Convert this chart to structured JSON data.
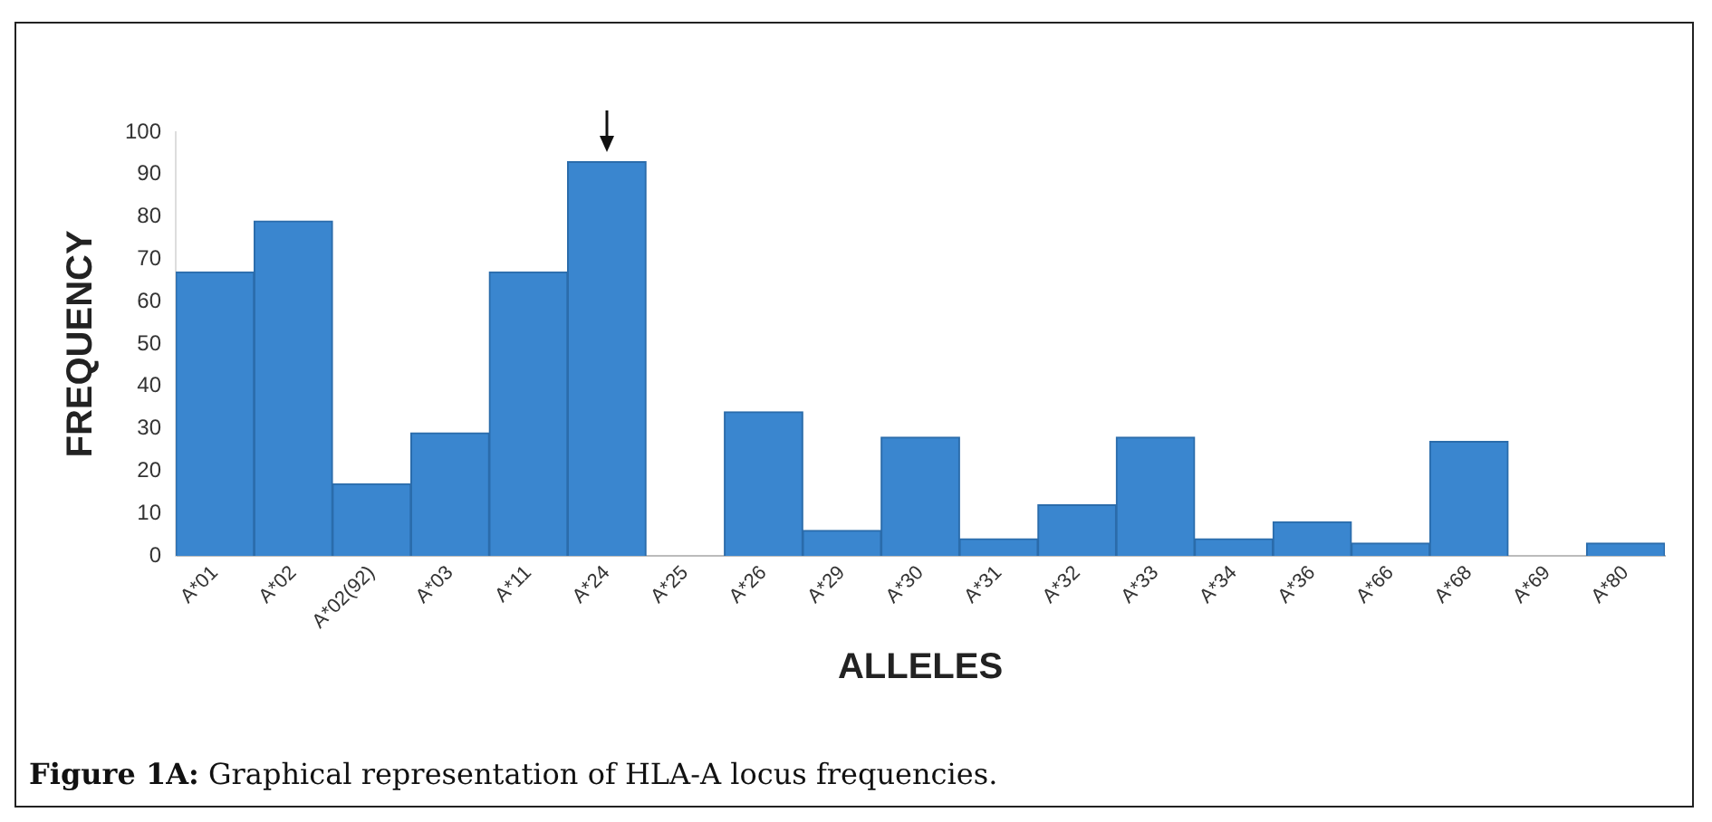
{
  "chart_data": {
    "type": "bar",
    "xlabel": "ALLELES",
    "ylabel": "FREQUENCY",
    "categories": [
      "A*01",
      "A*02",
      "A*02(92)",
      "A*03",
      "A*11",
      "A*24",
      "A*25",
      "A*26",
      "A*29",
      "A*30",
      "A*31",
      "A*32",
      "A*33",
      "A*34",
      "A*36",
      "A*66",
      "A*68",
      "A*69",
      "A*80"
    ],
    "values": [
      67,
      79,
      17,
      29,
      67,
      93,
      0,
      34,
      6,
      28,
      4,
      12,
      28,
      4,
      8,
      3,
      27,
      0,
      3
    ],
    "color": "#3a86cf",
    "ylim": [
      0,
      100
    ],
    "yticks": [
      0,
      10,
      20,
      30,
      40,
      50,
      60,
      70,
      80,
      90,
      100
    ],
    "grid": false,
    "legend": false,
    "annotations": [
      "Figure 1A: Graphical representation of HLA-A locus frequencies."
    ]
  }
}
